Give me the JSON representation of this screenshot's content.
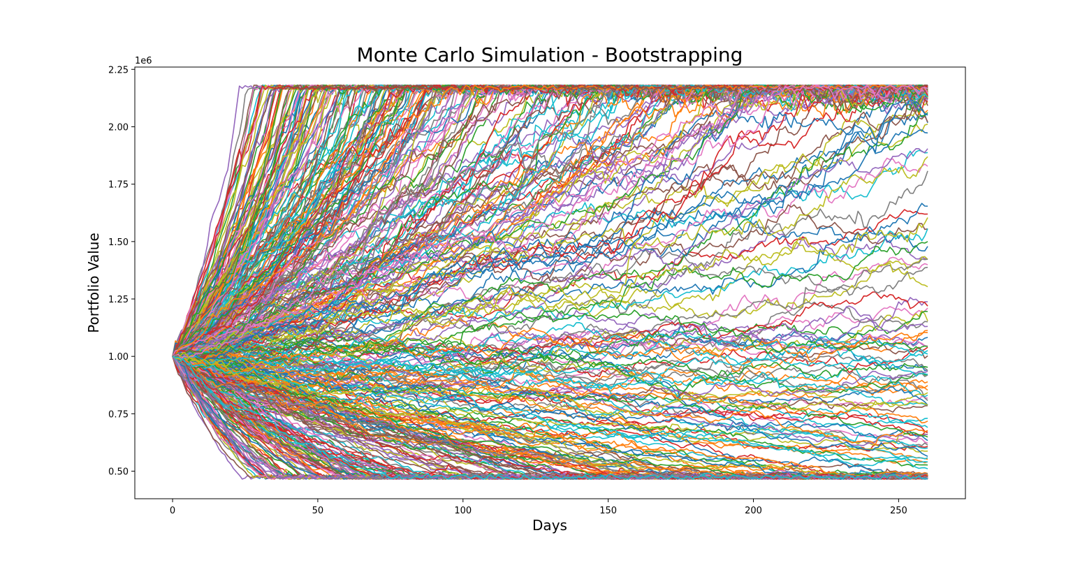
{
  "chart_data": {
    "type": "line",
    "title": "Monte Carlo Simulation - Bootstrapping",
    "xlabel": "Days",
    "ylabel": "Portfolio Value",
    "y_offset_label": "1e6",
    "xlim": [
      -13,
      273
    ],
    "ylim": [
      380000,
      2260000
    ],
    "x_ticks": [
      0,
      50,
      100,
      150,
      200,
      250
    ],
    "x_tick_labels": [
      "0",
      "50",
      "100",
      "150",
      "200",
      "250"
    ],
    "y_ticks": [
      500000,
      750000,
      1000000,
      1250000,
      1500000,
      1750000,
      2000000,
      2250000
    ],
    "y_tick_labels": [
      "0.50",
      "0.75",
      "1.00",
      "1.25",
      "1.50",
      "1.75",
      "2.00",
      "2.25"
    ],
    "grid": false,
    "legend": "none",
    "days": 260,
    "initial_value": 1000000,
    "final_value_range": [
      470000,
      2160000
    ],
    "colors": [
      "#1f77b4",
      "#ff7f0e",
      "#2ca02c",
      "#d62728",
      "#9467bd",
      "#8c564b",
      "#e377c2",
      "#7f7f7f",
      "#bcbd22",
      "#17becf"
    ]
  }
}
